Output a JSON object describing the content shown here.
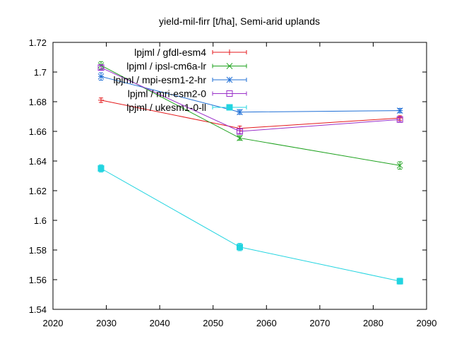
{
  "chart_data": {
    "type": "line",
    "title": "yield-mil-firr [t/ha], Semi-arid uplands",
    "xlabel": "",
    "ylabel": "",
    "xlim": [
      2020,
      2090
    ],
    "ylim": [
      1.54,
      1.72
    ],
    "xticks": [
      2020,
      2030,
      2040,
      2050,
      2060,
      2070,
      2080,
      2090
    ],
    "yticks": [
      1.54,
      1.56,
      1.58,
      1.6,
      1.62,
      1.64,
      1.66,
      1.68,
      1.7,
      1.72
    ],
    "xtick_labels": [
      "2020",
      "2030",
      "2040",
      "2050",
      "2060",
      "2070",
      "2080",
      "2090"
    ],
    "ytick_labels": [
      "1.54",
      "1.56",
      "1.58",
      "1.6",
      "1.62",
      "1.64",
      "1.66",
      "1.68",
      "1.7",
      "1.72"
    ],
    "grid": false,
    "legend_position": "top-left",
    "series": [
      {
        "name": "lpjml / gfdl-esm4",
        "color": "#e41a1c",
        "marker": "plus",
        "x": [
          2029,
          2055,
          2085
        ],
        "y": [
          1.681,
          1.662,
          1.669
        ],
        "err": [
          0.0015,
          0.0015,
          0.0015
        ]
      },
      {
        "name": "lpjml / ipsl-cm6a-lr",
        "color": "#1fa21f",
        "marker": "cross",
        "x": [
          2029,
          2055,
          2085
        ],
        "y": [
          1.7045,
          1.6555,
          1.637
        ],
        "err": [
          0.0025,
          0.0015,
          0.0025
        ]
      },
      {
        "name": "lpjml / mpi-esm1-2-hr",
        "color": "#1f6fd6",
        "marker": "star",
        "x": [
          2029,
          2055,
          2085
        ],
        "y": [
          1.697,
          1.673,
          1.674
        ],
        "err": [
          0.0025,
          0.0015,
          0.0015
        ]
      },
      {
        "name": "lpjml / mri-esm2-0",
        "color": "#9a30c9",
        "marker": "square",
        "x": [
          2029,
          2055,
          2085
        ],
        "y": [
          1.703,
          1.66,
          1.668
        ],
        "err": [
          0.0015,
          0.0015,
          0.0015
        ]
      },
      {
        "name": "lpjml / ukesm1-0-ll",
        "color": "#22d4e0",
        "marker": "filled-square",
        "x": [
          2029,
          2055,
          2085
        ],
        "y": [
          1.635,
          1.582,
          1.559
        ],
        "err": [
          0.0025,
          0.0025,
          0.002
        ]
      }
    ]
  }
}
